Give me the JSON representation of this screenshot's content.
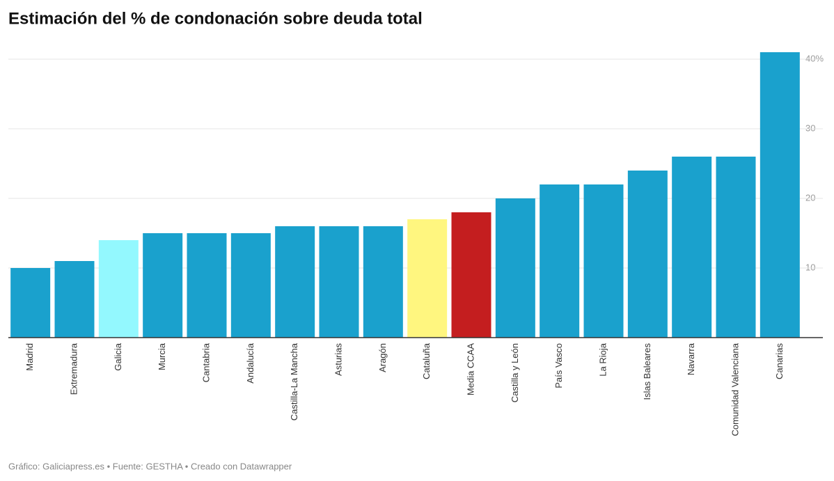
{
  "chart_data": {
    "type": "bar",
    "title": "Estimación del % de condonación sobre deuda total",
    "source": "Gráfico: Galiciapress.es  • Fuente: GESTHA • Creado con Datawrapper",
    "categories": [
      "Madrid",
      "Extremadura",
      "Galicia",
      "Murcia",
      "Cantabria",
      "Andalucía",
      "Castilla-La Mancha",
      "Asturias",
      "Aragón",
      "Cataluña",
      "Media CCAA",
      "Castilla y León",
      "País Vasco",
      "La Rioja",
      "Islas Baleares",
      "Navarra",
      "Comunidad Valenciana",
      "Canarias"
    ],
    "values": [
      10,
      11,
      14,
      15,
      15,
      15,
      16,
      16,
      16,
      17,
      18,
      20,
      22,
      22,
      24,
      26,
      26,
      41
    ],
    "colors": [
      "#1aa1cd",
      "#1aa1cd",
      "#93f8fe",
      "#1aa1cd",
      "#1aa1cd",
      "#1aa1cd",
      "#1aa1cd",
      "#1aa1cd",
      "#1aa1cd",
      "#fff67f",
      "#c41e1f",
      "#1aa1cd",
      "#1aa1cd",
      "#1aa1cd",
      "#1aa1cd",
      "#1aa1cd",
      "#1aa1cd",
      "#1aa1cd"
    ],
    "ylim": [
      0,
      41
    ],
    "yticks": [
      10,
      20,
      30,
      {
        "value": 40,
        "label": "40%"
      }
    ],
    "grid": true
  }
}
